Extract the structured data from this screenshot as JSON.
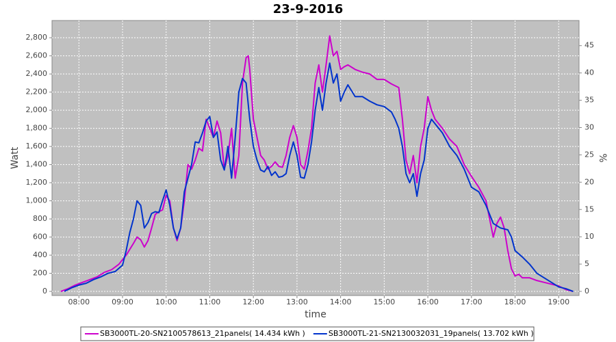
{
  "chart_data": {
    "type": "line",
    "title": "23-9-2016",
    "x_label": "time",
    "y_label": "Watt",
    "y2_label": "%",
    "xlim": [
      "07:23",
      "19:28"
    ],
    "xticks": [
      "08:00",
      "09:00",
      "10:00",
      "11:00",
      "12:00",
      "13:00",
      "14:00",
      "15:00",
      "16:00",
      "17:00",
      "18:00",
      "19:00"
    ],
    "ylim": [
      -45,
      2990
    ],
    "yticks": [
      0,
      200,
      400,
      600,
      800,
      {
        "value": 1000,
        "label": "1,000"
      },
      {
        "value": 1200,
        "label": "1,200"
      },
      {
        "value": 1400,
        "label": "1,400"
      },
      {
        "value": 1600,
        "label": "1,600"
      },
      {
        "value": 1800,
        "label": "1,800"
      },
      {
        "value": 2000,
        "label": "2,000"
      },
      {
        "value": 2200,
        "label": "2,200"
      },
      {
        "value": 2400,
        "label": "2,400"
      },
      {
        "value": 2600,
        "label": "2,600"
      },
      {
        "value": 2800,
        "label": "2,800"
      }
    ],
    "y2lim": [
      -0.75,
      49.6
    ],
    "y2ticks": [
      0,
      5,
      10,
      15,
      20,
      25,
      30,
      35,
      40,
      45
    ],
    "grid": true,
    "legend": "bottom",
    "series": [
      {
        "name": "SB3000TL-20-SN2100578613_21panels( 14.434 kWh )",
        "color": "#cc00cc",
        "x": [
          "07:35",
          "07:45",
          "07:55",
          "08:05",
          "08:15",
          "08:25",
          "08:35",
          "08:45",
          "08:55",
          "09:05",
          "09:15",
          "09:20",
          "09:25",
          "09:30",
          "09:35",
          "09:40",
          "09:45",
          "09:50",
          "09:55",
          "10:00",
          "10:05",
          "10:10",
          "10:15",
          "10:20",
          "10:25",
          "10:30",
          "10:35",
          "10:40",
          "10:45",
          "10:50",
          "10:55",
          "11:00",
          "11:05",
          "11:10",
          "11:15",
          "11:20",
          "11:25",
          "11:30",
          "11:35",
          "11:40",
          "11:45",
          "11:50",
          "11:53",
          "11:55",
          "12:00",
          "12:05",
          "12:10",
          "12:15",
          "12:20",
          "12:25",
          "12:30",
          "12:35",
          "12:40",
          "12:45",
          "12:50",
          "12:55",
          "13:00",
          "13:05",
          "13:10",
          "13:15",
          "13:20",
          "13:25",
          "13:30",
          "13:35",
          "13:40",
          "13:45",
          "13:50",
          "13:55",
          "14:00",
          "14:05",
          "14:10",
          "14:20",
          "14:30",
          "14:40",
          "14:50",
          "15:00",
          "15:10",
          "15:20",
          "15:25",
          "15:30",
          "15:35",
          "15:40",
          "15:45",
          "15:50",
          "15:55",
          "16:00",
          "16:05",
          "16:10",
          "16:20",
          "16:30",
          "16:40",
          "16:50",
          "17:00",
          "17:10",
          "17:20",
          "17:25",
          "17:30",
          "17:35",
          "17:40",
          "17:45",
          "17:50",
          "17:55",
          "18:00",
          "18:05",
          "18:10",
          "18:20",
          "18:30",
          "18:40",
          "18:50",
          "19:00",
          "19:10",
          "19:20"
        ],
        "values": [
          0,
          30,
          70,
          100,
          130,
          160,
          210,
          240,
          300,
          400,
          530,
          600,
          570,
          490,
          560,
          700,
          850,
          880,
          900,
          1060,
          1000,
          700,
          560,
          700,
          1000,
          1400,
          1350,
          1450,
          1580,
          1550,
          1900,
          1800,
          1700,
          1880,
          1750,
          1350,
          1500,
          1800,
          1250,
          1500,
          2300,
          2580,
          2600,
          2450,
          1900,
          1700,
          1500,
          1450,
          1350,
          1380,
          1430,
          1380,
          1370,
          1500,
          1700,
          1830,
          1700,
          1400,
          1350,
          1550,
          1800,
          2300,
          2500,
          2200,
          2500,
          2820,
          2600,
          2650,
          2450,
          2480,
          2500,
          2450,
          2420,
          2400,
          2340,
          2340,
          2290,
          2250,
          1900,
          1450,
          1300,
          1500,
          1200,
          1600,
          1800,
          2150,
          2000,
          1900,
          1800,
          1680,
          1600,
          1400,
          1270,
          1150,
          1000,
          800,
          600,
          750,
          820,
          700,
          450,
          250,
          170,
          190,
          150,
          150,
          120,
          100,
          80,
          60,
          20,
          0
        ]
      },
      {
        "name": "SB3000TL-21-SN2130032031_19panels( 13.702 kWh )",
        "color": "#0033cc",
        "x": [
          "07:40",
          "07:50",
          "08:00",
          "08:10",
          "08:20",
          "08:30",
          "08:40",
          "08:50",
          "09:00",
          "09:05",
          "09:10",
          "09:15",
          "09:20",
          "09:25",
          "09:30",
          "09:35",
          "09:40",
          "09:45",
          "09:50",
          "09:55",
          "10:00",
          "10:05",
          "10:10",
          "10:15",
          "10:20",
          "10:25",
          "10:30",
          "10:35",
          "10:40",
          "10:45",
          "10:50",
          "10:55",
          "11:00",
          "11:05",
          "11:10",
          "11:15",
          "11:20",
          "11:25",
          "11:30",
          "11:35",
          "11:40",
          "11:45",
          "11:50",
          "11:55",
          "12:00",
          "12:05",
          "12:10",
          "12:15",
          "12:20",
          "12:25",
          "12:30",
          "12:35",
          "12:40",
          "12:45",
          "12:50",
          "12:55",
          "13:00",
          "13:05",
          "13:10",
          "13:15",
          "13:20",
          "13:25",
          "13:30",
          "13:35",
          "13:40",
          "13:45",
          "13:50",
          "13:55",
          "14:00",
          "14:05",
          "14:10",
          "14:20",
          "14:30",
          "14:40",
          "14:50",
          "15:00",
          "15:10",
          "15:15",
          "15:20",
          "15:25",
          "15:30",
          "15:35",
          "15:40",
          "15:45",
          "15:50",
          "15:55",
          "16:00",
          "16:05",
          "16:10",
          "16:20",
          "16:30",
          "16:40",
          "16:50",
          "17:00",
          "17:10",
          "17:20",
          "17:30",
          "17:40",
          "17:50",
          "17:55",
          "18:00",
          "18:10",
          "18:20",
          "18:30",
          "18:40",
          "18:50",
          "19:00",
          "19:10",
          "19:20"
        ],
        "values": [
          0,
          40,
          70,
          90,
          130,
          160,
          200,
          220,
          290,
          450,
          650,
          800,
          1000,
          950,
          700,
          760,
          860,
          880,
          870,
          1000,
          1120,
          950,
          700,
          580,
          700,
          1100,
          1250,
          1400,
          1650,
          1640,
          1750,
          1880,
          1930,
          1700,
          1760,
          1450,
          1340,
          1600,
          1250,
          1700,
          2200,
          2350,
          2300,
          1900,
          1600,
          1450,
          1340,
          1320,
          1380,
          1280,
          1320,
          1260,
          1270,
          1300,
          1500,
          1650,
          1500,
          1260,
          1250,
          1400,
          1650,
          2000,
          2250,
          2000,
          2300,
          2520,
          2300,
          2400,
          2100,
          2200,
          2280,
          2150,
          2150,
          2100,
          2060,
          2040,
          1980,
          1900,
          1800,
          1600,
          1300,
          1200,
          1300,
          1050,
          1300,
          1450,
          1800,
          1900,
          1850,
          1750,
          1600,
          1500,
          1350,
          1150,
          1100,
          950,
          750,
          700,
          680,
          600,
          450,
          380,
          300,
          200,
          150,
          100,
          50,
          30,
          0
        ]
      }
    ]
  }
}
